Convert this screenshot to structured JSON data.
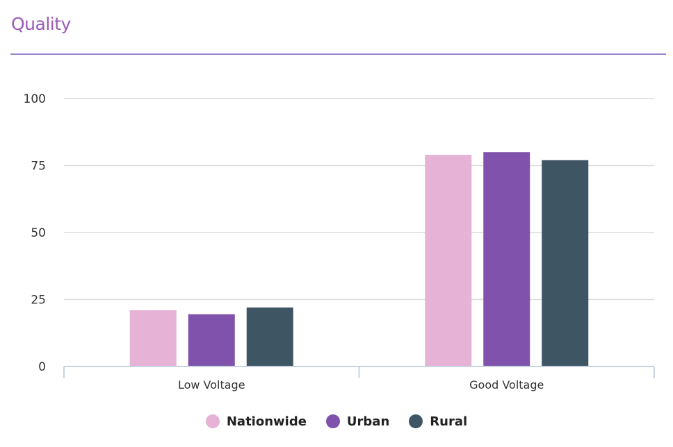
{
  "header": {
    "title": "Quality"
  },
  "chart_data": {
    "type": "bar",
    "categories": [
      "Low Voltage",
      "Good Voltage"
    ],
    "series": [
      {
        "name": "Nationwide",
        "values": [
          21,
          79
        ],
        "color": "#e6b3d6"
      },
      {
        "name": "Urban",
        "values": [
          19.5,
          80
        ],
        "color": "#8052ab"
      },
      {
        "name": "Rural",
        "values": [
          22,
          77
        ],
        "color": "#3e5564"
      }
    ],
    "yticks": [
      0,
      25,
      50,
      75,
      100
    ],
    "ylim": [
      0,
      100
    ],
    "grid": true,
    "legend_position": "bottom"
  }
}
